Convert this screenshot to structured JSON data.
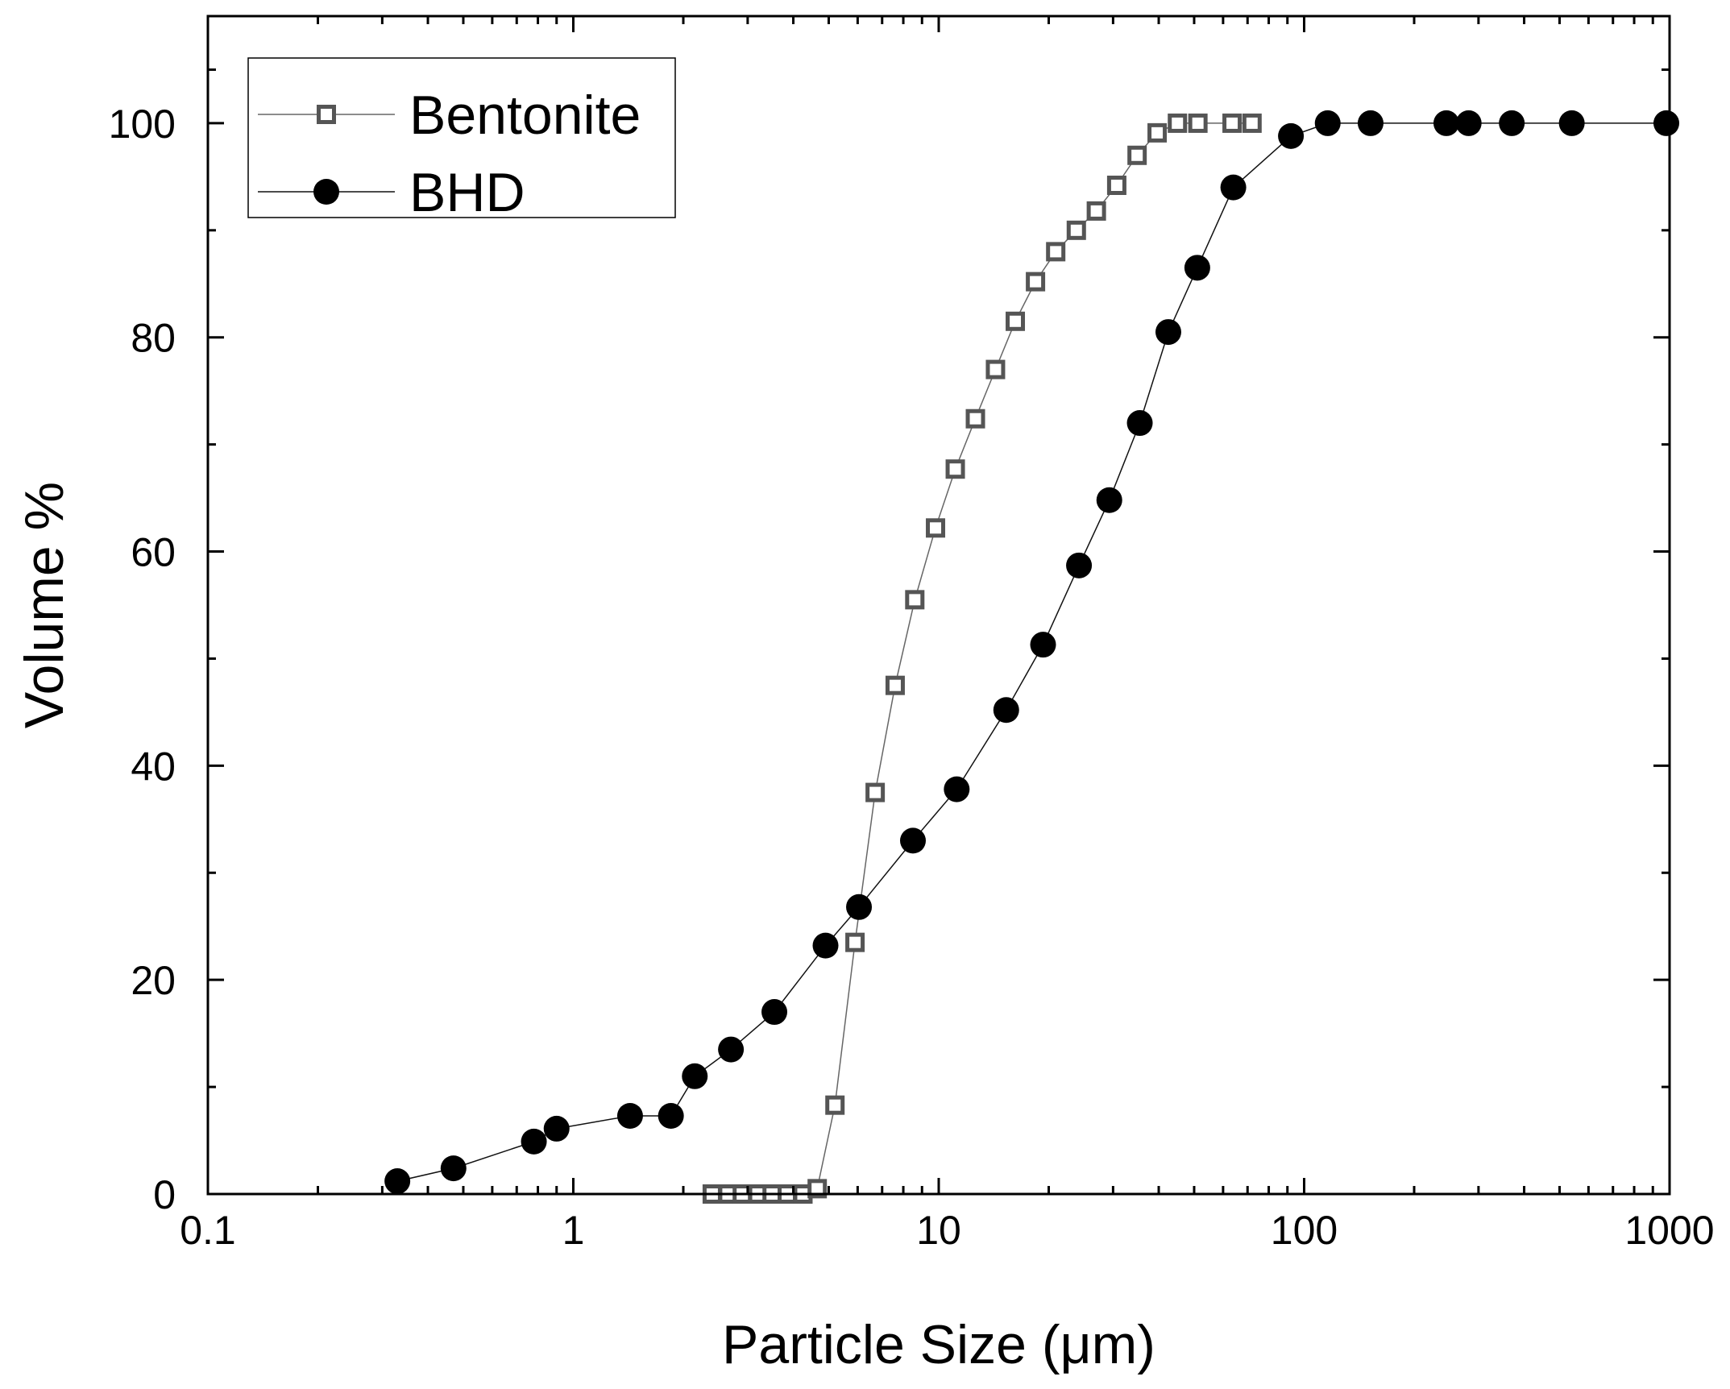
{
  "chart_data": {
    "type": "scatter",
    "title": "",
    "xlabel": "Particle Size (μm)",
    "ylabel": "Volume %",
    "x_scale": "log",
    "xlim": [
      0.1,
      1000
    ],
    "ylim": [
      0,
      110
    ],
    "x_ticks": [
      {
        "value": 0.1,
        "label": "0.1"
      },
      {
        "value": 1,
        "label": "1"
      },
      {
        "value": 10,
        "label": "10"
      },
      {
        "value": 100,
        "label": "100"
      },
      {
        "value": 1000,
        "label": "1000"
      }
    ],
    "y_ticks": [
      {
        "value": 0,
        "label": "0"
      },
      {
        "value": 20,
        "label": "20"
      },
      {
        "value": 40,
        "label": "40"
      },
      {
        "value": 60,
        "label": "60"
      },
      {
        "value": 80,
        "label": "80"
      },
      {
        "value": 100,
        "label": "100"
      }
    ],
    "grid": false,
    "legend_position": "top-left",
    "series": [
      {
        "name": "Bentonite",
        "marker": "open-square",
        "color": "#555555",
        "line_color": "#666666",
        "x": [
          2.4,
          2.65,
          2.9,
          3.2,
          3.5,
          3.85,
          4.25,
          4.65,
          5.2,
          5.9,
          6.7,
          7.6,
          8.6,
          9.8,
          11.1,
          12.6,
          14.3,
          16.2,
          18.4,
          20.9,
          23.8,
          27.0,
          30.7,
          34.9,
          39.6,
          45.0,
          51.2,
          63.5,
          72.0
        ],
        "y": [
          0,
          0,
          0,
          0,
          0,
          0,
          0,
          0.5,
          8.3,
          23.5,
          37.5,
          47.5,
          55.5,
          62.2,
          67.7,
          72.4,
          77.0,
          81.5,
          85.2,
          88.0,
          90.0,
          91.8,
          94.2,
          97.0,
          99.1,
          100,
          100,
          100,
          100
        ]
      },
      {
        "name": "BHD",
        "marker": "filled-circle",
        "color": "#000000",
        "line_color": "#111111",
        "x": [
          0.33,
          0.47,
          0.78,
          0.9,
          1.43,
          1.85,
          2.15,
          2.7,
          3.55,
          4.9,
          6.05,
          8.5,
          11.2,
          15.3,
          19.3,
          24.2,
          29.3,
          35.5,
          42.5,
          51.0,
          64.0,
          92.0,
          116.0,
          152.0,
          245.0,
          282.0,
          370.0,
          540.0,
          980.0
        ],
        "y": [
          1.2,
          2.4,
          4.9,
          6.1,
          7.3,
          7.3,
          11.0,
          13.5,
          17.0,
          23.2,
          26.8,
          33.0,
          37.8,
          45.2,
          51.3,
          58.7,
          64.8,
          72.0,
          80.5,
          86.5,
          94.0,
          98.8,
          100,
          100,
          100,
          100,
          100,
          100,
          100
        ]
      }
    ]
  }
}
